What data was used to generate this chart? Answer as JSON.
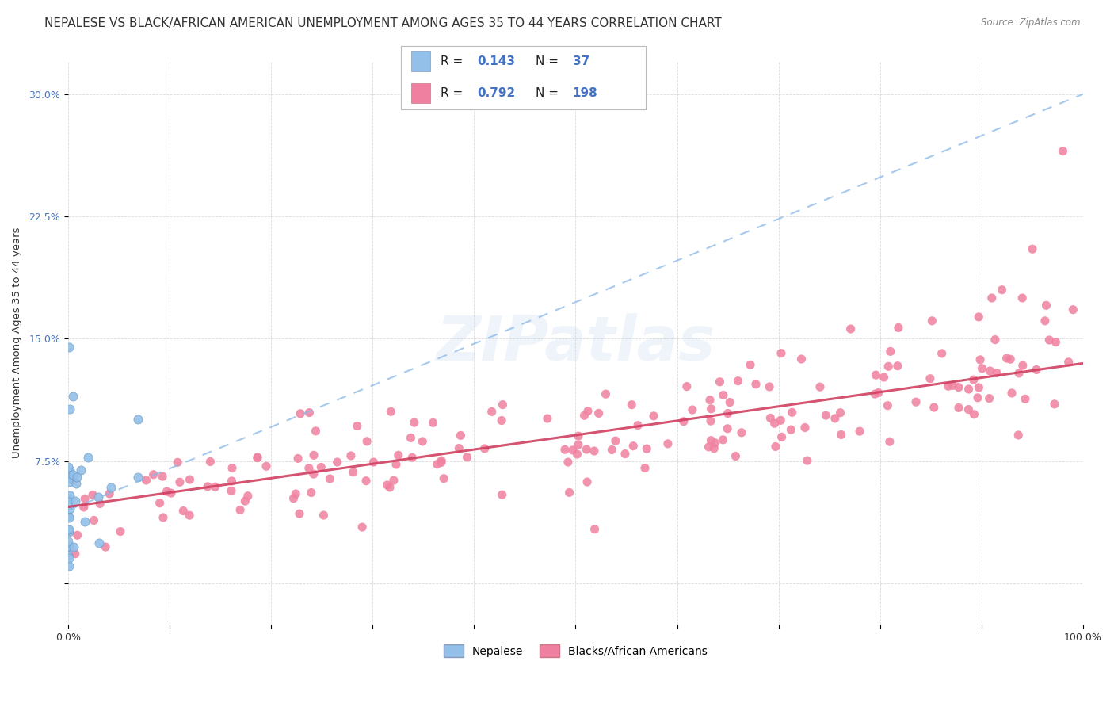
{
  "title": "NEPALESE VS BLACK/AFRICAN AMERICAN UNEMPLOYMENT AMONG AGES 35 TO 44 YEARS CORRELATION CHART",
  "source": "Source: ZipAtlas.com",
  "ylabel_label": "Unemployment Among Ages 35 to 44 years",
  "watermark": "ZIPatlas",
  "nepalese_color": "#92c0e8",
  "nepalese_line_color": "#6aa0d8",
  "black_color": "#f080a0",
  "black_line_color": "#d04060",
  "R_nepalese": "0.143",
  "N_nepalese": "37",
  "R_black": "0.792",
  "N_black": "198",
  "legend_label_nepalese": "Nepalese",
  "legend_label_black": "Blacks/African Americans",
  "title_fontsize": 11,
  "axis_label_fontsize": 9.5,
  "tick_fontsize": 9,
  "legend_fontsize": 10,
  "stat_fontsize": 11,
  "blue_text_color": "#4472c4",
  "dark_text_color": "#333333",
  "source_color": "#888888"
}
